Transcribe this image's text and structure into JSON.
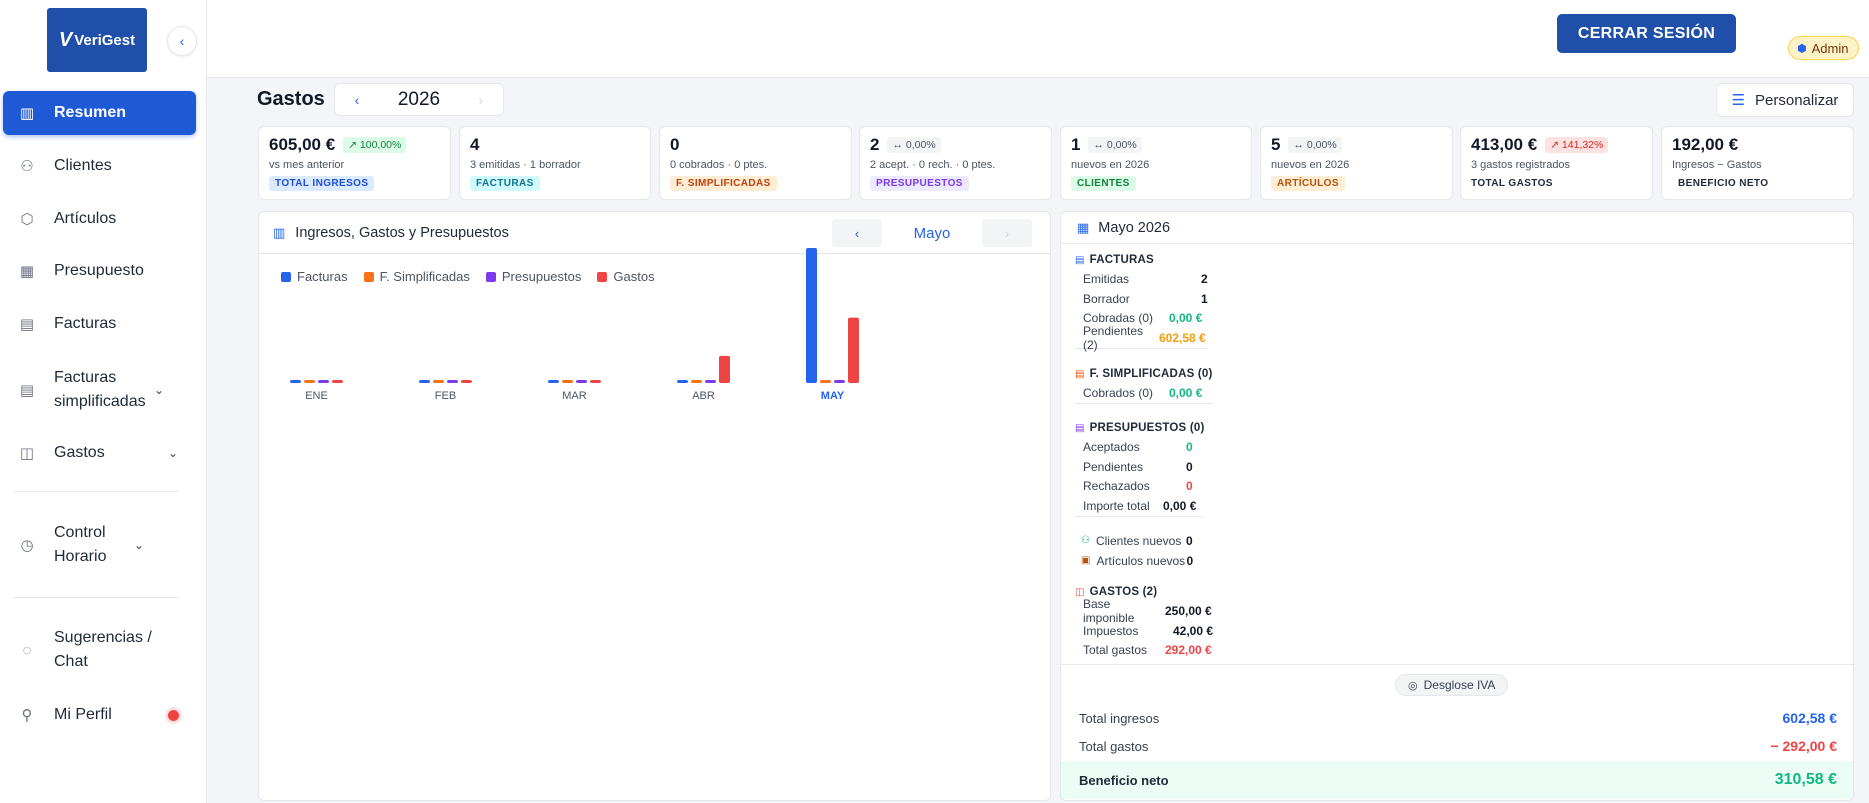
{
  "brand": {
    "name": "VeriGest"
  },
  "sidebar": {
    "items": [
      {
        "label": "Resumen",
        "icon": "bar-chart-icon"
      },
      {
        "label": "Clientes",
        "icon": "users-icon"
      },
      {
        "label": "Artículos",
        "icon": "box-icon"
      },
      {
        "label": "Presupuesto",
        "icon": "calculator-icon"
      },
      {
        "label": "Facturas",
        "icon": "invoice-icon"
      },
      {
        "label": "Facturas simplificadas",
        "icon": "receipt-icon"
      },
      {
        "label": "Gastos",
        "icon": "wallet-icon"
      },
      {
        "label": "Control Horario",
        "icon": "clock-icon"
      },
      {
        "label": "Sugerencias / Chat",
        "icon": "chat-icon"
      },
      {
        "label": "Mi Perfil",
        "icon": "user-icon"
      }
    ]
  },
  "topbar": {
    "logout_label": "CERRAR SESIÓN",
    "role_badge": "Admin"
  },
  "header": {
    "title": "Gastos",
    "year": "2026",
    "customize_label": "Personalizar"
  },
  "stats": [
    {
      "value": "605,00 €",
      "change": "↗ 100,00%",
      "sub": "vs mes anterior",
      "tag": "TOTAL INGRESOS"
    },
    {
      "value": "4",
      "change": "",
      "sub": "3 emitidas · 1 borrador",
      "tag": "FACTURAS"
    },
    {
      "value": "0",
      "change": "",
      "sub": "0 cobrados · 0 ptes.",
      "tag": "F. SIMPLIFICADAS"
    },
    {
      "value": "2",
      "change": "↔ 0,00%",
      "sub": "2 acept. · 0 rech. · 0 ptes.",
      "tag": "PRESUPUESTOS"
    },
    {
      "value": "1",
      "change": "↔ 0,00%",
      "sub": "nuevos en 2026",
      "tag": "CLIENTES"
    },
    {
      "value": "5",
      "change": "↔ 0,00%",
      "sub": "nuevos en 2026",
      "tag": "ARTÍCULOS"
    },
    {
      "value": "413,00 €",
      "change": "↗ 141,32%",
      "sub": "3 gastos registrados",
      "tag": "TOTAL GASTOS"
    },
    {
      "value": "192,00 €",
      "change": "",
      "sub": "Ingresos − Gastos",
      "tag": "BENEFICIO NETO"
    }
  ],
  "chart_panel": {
    "title": "Ingresos, Gastos y Presupuestos",
    "month": "Mayo"
  },
  "chart_data": {
    "type": "bar",
    "categories": [
      "ENE",
      "FEB",
      "MAR",
      "ABR",
      "MAY"
    ],
    "series": [
      {
        "name": "Facturas",
        "color": "#2563eb",
        "values": [
          0,
          0,
          0,
          0,
          602.58
        ]
      },
      {
        "name": "F. Simplificadas",
        "color": "#f97316",
        "values": [
          0,
          0,
          0,
          0,
          0
        ]
      },
      {
        "name": "Presupuestos",
        "color": "#7c3aed",
        "values": [
          0,
          0,
          0,
          0,
          0
        ]
      },
      {
        "name": "Gastos",
        "color": "#ef4444",
        "values": [
          0,
          0,
          0,
          121,
          292
        ]
      }
    ],
    "highlight_category": "MAY",
    "ylim": [
      0,
      602.58
    ]
  },
  "summary": {
    "title": "Mayo 2026",
    "facturas": {
      "title": "FACTURAS",
      "rows": [
        {
          "k": "Emitidas",
          "v": "2"
        },
        {
          "k": "Borrador",
          "v": "1"
        },
        {
          "k": "Cobradas (0)",
          "v": "0,00 €"
        },
        {
          "k": "Pendientes (2)",
          "v": "602,58 €"
        }
      ]
    },
    "simplificadas": {
      "title": "F. SIMPLIFICADAS (0)",
      "rows": [
        {
          "k": "Cobrados (0)",
          "v": "0,00 €"
        }
      ]
    },
    "presupuestos": {
      "title": "PRESUPUESTOS (0)",
      "rows": [
        {
          "k": "Aceptados",
          "v": "0"
        },
        {
          "k": "Pendientes",
          "v": "0"
        },
        {
          "k": "Rechazados",
          "v": "0"
        },
        {
          "k": "Importe total",
          "v": "0,00 €"
        }
      ]
    },
    "nuevos": [
      {
        "k": "Clientes nuevos",
        "v": "0"
      },
      {
        "k": "Artículos nuevos",
        "v": "0"
      }
    ],
    "gastos": {
      "title": "GASTOS (2)",
      "rows": [
        {
          "k": "Base imponible",
          "v": "250,00 €"
        },
        {
          "k": "Impuestos",
          "v": "42,00 €"
        },
        {
          "k": "Total gastos",
          "v": "292,00 €"
        }
      ]
    },
    "iva_label": "Desglose IVA",
    "totals": [
      {
        "k": "Total ingresos",
        "v": "602,58 €"
      },
      {
        "k": "Total gastos",
        "v": "− 292,00 €"
      },
      {
        "k": "Beneficio neto",
        "v": "310,58 €"
      }
    ]
  }
}
